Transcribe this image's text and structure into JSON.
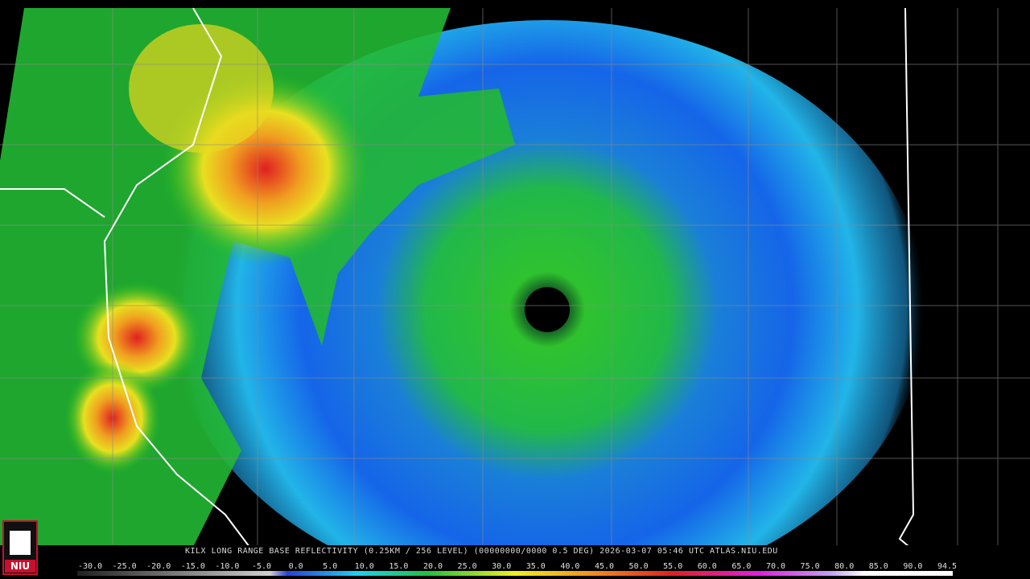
{
  "caption": "KILX LONG RANGE BASE REFLECTIVITY (0.25KM / 256 LEVEL) (00000000/0000 0.5 DEG) 2026-03-07 05:46 UTC  ATLAS.NIU.EDU",
  "logo": "NIU",
  "scale_labels": [
    "-30.0",
    "-25.0",
    "-20.0",
    "-15.0",
    "-10.0",
    "-5.0",
    "0.0",
    "5.0",
    "10.0",
    "15.0",
    "20.0",
    "25.0",
    "30.0",
    "35.0",
    "40.0",
    "45.0",
    "50.0",
    "55.0",
    "60.0",
    "65.0",
    "70.0",
    "75.0",
    "80.0",
    "85.0",
    "90.0",
    "94.5"
  ]
}
